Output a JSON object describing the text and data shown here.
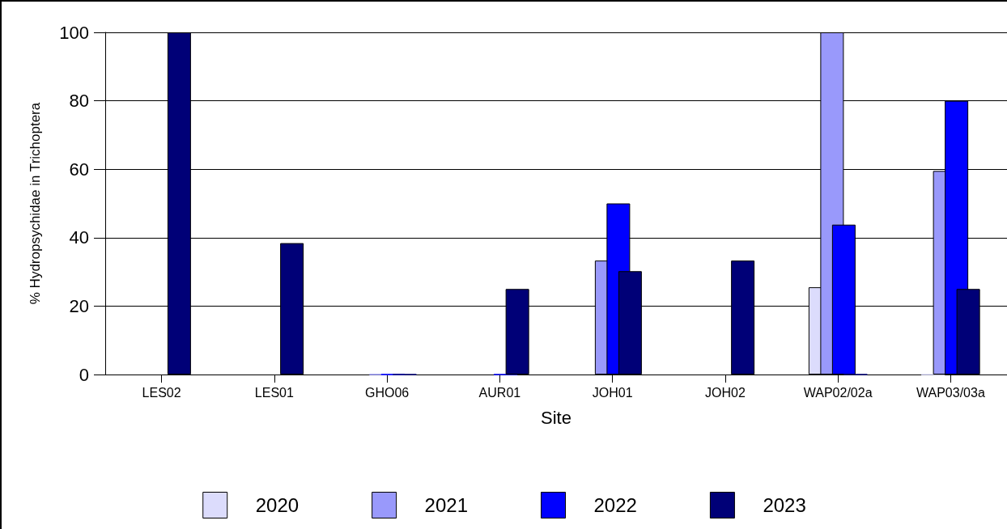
{
  "chart_data": {
    "type": "bar",
    "xlabel": "Site",
    "ylabel": "% Hydropsychidae in Trichoptera",
    "categories": [
      "LES02",
      "LES01",
      "GHO06",
      "AUR01",
      "JOH01",
      "JOH02",
      "WAP02/02a",
      "WAP03/03a"
    ],
    "series": [
      {
        "name": "2020",
        "color": "#dcdcfc",
        "values": [
          null,
          null,
          null,
          null,
          null,
          null,
          25.5,
          0
        ]
      },
      {
        "name": "2021",
        "color": "#9999fb",
        "values": [
          null,
          null,
          0,
          null,
          33.3,
          null,
          100,
          59.5
        ]
      },
      {
        "name": "2022",
        "color": "#0000ff",
        "values": [
          null,
          null,
          0,
          0,
          50,
          null,
          43.8,
          80
        ]
      },
      {
        "name": "2023",
        "color": "#000077",
        "values": [
          100,
          38.4,
          0,
          25,
          30.2,
          33.3,
          0,
          25
        ]
      }
    ],
    "ylim": [
      0,
      100
    ],
    "yticks": [
      0,
      20,
      40,
      60,
      80,
      100
    ],
    "grid": "y",
    "legend": "bottom"
  }
}
